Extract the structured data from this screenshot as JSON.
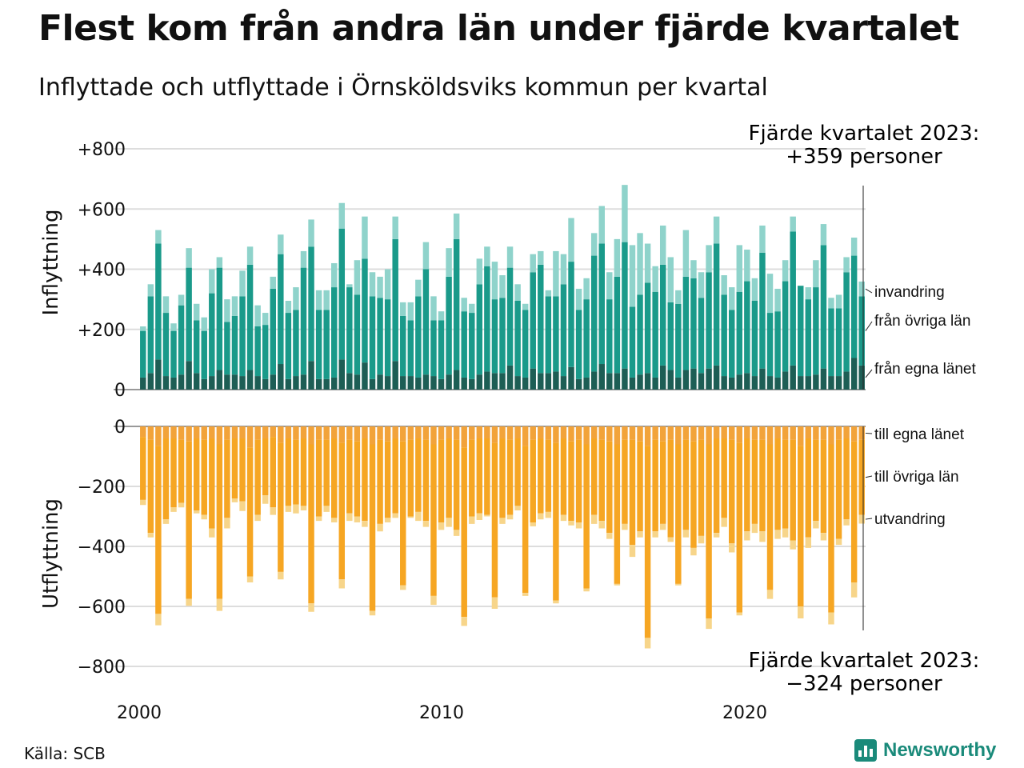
{
  "title": "Flest kom från andra län under fjärde kvartalet",
  "subtitle": "Inflyttade och utflyttade i Örnsköldsviks kommun per kvartal",
  "source": "Källa: SCB",
  "brand": "Newsworthy",
  "colors": {
    "in_egna": "#1d5e55",
    "in_ovriga": "#1a9a8a",
    "in_invandring": "#8fd3cb",
    "out_egna": "#f2a33a",
    "out_ovriga": "#f6a623",
    "out_utvandring": "#f7d58a",
    "brand": "#1a8a7a"
  },
  "chart_data": {
    "type": "bar",
    "stacked": true,
    "annotations": {
      "top_label": "Fjärde kvartalet 2023:",
      "top_value": "+359 personer",
      "bottom_label": "Fjärde kvartalet 2023:",
      "bottom_value": "−324 personer"
    },
    "x_ticks": [
      "2000",
      "2010",
      "2020"
    ],
    "panels": [
      {
        "name": "inflyttning",
        "ylabel": "Inflyttning",
        "ylim": [
          0,
          800
        ],
        "y_ticks": [
          "0",
          "+200",
          "+400",
          "+600",
          "+800"
        ],
        "series_labels": [
          "invandring",
          "från övriga län",
          "från egna länet"
        ],
        "totals": [
          210,
          350,
          530,
          310,
          220,
          315,
          470,
          285,
          240,
          400,
          440,
          300,
          310,
          395,
          475,
          280,
          255,
          375,
          515,
          295,
          340,
          450,
          565,
          330,
          330,
          420,
          620,
          350,
          430,
          575,
          390,
          375,
          400,
          575,
          290,
          290,
          365,
          490,
          310,
          260,
          470,
          585,
          305,
          285,
          435,
          475,
          425,
          380,
          475,
          350,
          285,
          450,
          460,
          330,
          460,
          450,
          570,
          335,
          370,
          520,
          610,
          390,
          500,
          680,
          480,
          520,
          485,
          410,
          545,
          440,
          330,
          530,
          430,
          390,
          480,
          575,
          380,
          340,
          480,
          465,
          370,
          545,
          385,
          335,
          430,
          575,
          345,
          340,
          430,
          550,
          305,
          315,
          440,
          505,
          359
        ],
        "egna": [
          40,
          55,
          100,
          45,
          40,
          50,
          95,
          55,
          35,
          45,
          65,
          50,
          50,
          45,
          65,
          45,
          35,
          50,
          85,
          35,
          45,
          50,
          95,
          35,
          35,
          40,
          100,
          55,
          50,
          90,
          35,
          50,
          45,
          95,
          45,
          45,
          40,
          50,
          45,
          35,
          50,
          65,
          40,
          35,
          50,
          60,
          55,
          55,
          80,
          45,
          40,
          70,
          55,
          55,
          60,
          45,
          75,
          35,
          40,
          60,
          85,
          55,
          55,
          70,
          40,
          50,
          55,
          40,
          80,
          65,
          40,
          65,
          70,
          55,
          70,
          80,
          45,
          40,
          50,
          55,
          45,
          70,
          45,
          40,
          60,
          80,
          45,
          45,
          50,
          70,
          45,
          45,
          60,
          105,
          80
        ],
        "ovriga": [
          155,
          255,
          385,
          210,
          155,
          230,
          310,
          175,
          160,
          275,
          340,
          175,
          195,
          265,
          350,
          165,
          180,
          285,
          365,
          220,
          220,
          355,
          380,
          230,
          230,
          300,
          435,
          285,
          265,
          345,
          275,
          255,
          255,
          405,
          200,
          185,
          270,
          350,
          185,
          195,
          325,
          435,
          220,
          220,
          300,
          350,
          245,
          250,
          325,
          250,
          225,
          320,
          360,
          255,
          250,
          305,
          350,
          230,
          260,
          385,
          400,
          245,
          320,
          420,
          235,
          265,
          300,
          285,
          335,
          225,
          245,
          310,
          300,
          250,
          320,
          405,
          270,
          225,
          275,
          305,
          250,
          385,
          210,
          220,
          300,
          445,
          300,
          255,
          290,
          410,
          225,
          225,
          330,
          340,
          230
        ],
        "invandring": [
          15,
          40,
          45,
          55,
          25,
          35,
          65,
          55,
          45,
          80,
          35,
          75,
          65,
          85,
          60,
          70,
          40,
          40,
          65,
          40,
          75,
          55,
          90,
          65,
          65,
          80,
          85,
          10,
          115,
          140,
          80,
          70,
          100,
          75,
          45,
          60,
          55,
          90,
          80,
          30,
          95,
          85,
          45,
          30,
          85,
          65,
          125,
          75,
          70,
          55,
          20,
          60,
          45,
          20,
          150,
          100,
          145,
          70,
          70,
          75,
          125,
          90,
          125,
          190,
          205,
          205,
          130,
          85,
          130,
          150,
          45,
          155,
          60,
          85,
          90,
          90,
          65,
          75,
          155,
          105,
          75,
          90,
          130,
          75,
          70,
          50,
          0,
          40,
          90,
          70,
          35,
          45,
          50,
          60,
          49
        ]
      },
      {
        "name": "utflyttning",
        "ylabel": "Utflyttning",
        "ylim": [
          -800,
          0
        ],
        "y_ticks": [
          "0",
          "−200",
          "−400",
          "−600",
          "−800"
        ],
        "series_labels": [
          "till egna länet",
          "till övriga län",
          "utvandring"
        ],
        "totals": [
          -262,
          -370,
          -663,
          -325,
          -285,
          -270,
          -598,
          -290,
          -310,
          -370,
          -615,
          -340,
          -253,
          -282,
          -520,
          -315,
          -258,
          -295,
          -510,
          -285,
          -290,
          -280,
          -618,
          -315,
          -285,
          -320,
          -540,
          -315,
          -320,
          -335,
          -630,
          -350,
          -320,
          -305,
          -545,
          -305,
          -315,
          -335,
          -595,
          -345,
          -335,
          -365,
          -665,
          -325,
          -312,
          -300,
          -608,
          -325,
          -310,
          -280,
          -565,
          -333,
          -310,
          -305,
          -590,
          -315,
          -330,
          -340,
          -550,
          -325,
          -340,
          -375,
          -530,
          -345,
          -435,
          -370,
          -740,
          -370,
          -345,
          -385,
          -530,
          -370,
          -430,
          -390,
          -675,
          -370,
          -335,
          -420,
          -630,
          -380,
          -355,
          -385,
          -575,
          -375,
          -370,
          -410,
          -640,
          -405,
          -340,
          -380,
          -660,
          -395,
          -330,
          -570,
          -324
        ],
        "egna": [
          -35,
          -45,
          -65,
          -40,
          -40,
          -45,
          -50,
          -40,
          -45,
          -40,
          -60,
          -45,
          -40,
          -40,
          -70,
          -45,
          -40,
          -35,
          -55,
          -40,
          -45,
          -40,
          -60,
          -45,
          -45,
          -40,
          -55,
          -45,
          -50,
          -40,
          -60,
          -45,
          -50,
          -40,
          -50,
          -45,
          -40,
          -45,
          -60,
          -45,
          -40,
          -45,
          -70,
          -45,
          -40,
          -40,
          -55,
          -40,
          -45,
          -40,
          -65,
          -45,
          -40,
          -45,
          -55,
          -40,
          -50,
          -45,
          -60,
          -40,
          -45,
          -50,
          -60,
          -45,
          -45,
          -50,
          -65,
          -45,
          -50,
          -45,
          -60,
          -45,
          -50,
          -45,
          -60,
          -40,
          -40,
          -45,
          -55,
          -40,
          -45,
          -45,
          -60,
          -40,
          -45,
          -45,
          -65,
          -40,
          -45,
          -45,
          -60,
          -45,
          -40,
          -50,
          -45
        ],
        "ovriga": [
          -210,
          -310,
          -560,
          -270,
          -230,
          -210,
          -525,
          -240,
          -250,
          -300,
          -515,
          -260,
          -200,
          -210,
          -430,
          -250,
          -190,
          -235,
          -430,
          -225,
          -215,
          -225,
          -530,
          -255,
          -220,
          -265,
          -455,
          -245,
          -250,
          -275,
          -555,
          -280,
          -255,
          -250,
          -480,
          -255,
          -245,
          -270,
          -505,
          -275,
          -265,
          -300,
          -565,
          -255,
          -250,
          -255,
          -515,
          -265,
          -250,
          -225,
          -490,
          -275,
          -250,
          -240,
          -525,
          -255,
          -265,
          -275,
          -480,
          -255,
          -270,
          -305,
          -465,
          -280,
          -350,
          -300,
          -640,
          -305,
          -275,
          -325,
          -465,
          -300,
          -355,
          -320,
          -580,
          -315,
          -265,
          -345,
          -565,
          -310,
          -280,
          -305,
          -485,
          -305,
          -295,
          -335,
          -535,
          -330,
          -270,
          -310,
          -560,
          -330,
          -270,
          -470,
          -250
        ],
        "utvandring": [
          -17,
          -15,
          -38,
          -15,
          -15,
          -15,
          -23,
          -10,
          -15,
          -30,
          -40,
          -35,
          -13,
          -32,
          -20,
          -20,
          -28,
          -25,
          -25,
          -20,
          -30,
          -15,
          -28,
          -15,
          -20,
          -15,
          -30,
          -25,
          -20,
          -20,
          -15,
          -25,
          -15,
          -15,
          -15,
          -5,
          -30,
          -20,
          -30,
          -25,
          -30,
          -20,
          -30,
          -25,
          -22,
          -5,
          -38,
          -20,
          -15,
          -15,
          -10,
          -13,
          -20,
          -20,
          -10,
          -20,
          -15,
          -20,
          -10,
          -30,
          -25,
          -20,
          -5,
          -20,
          -40,
          -20,
          -35,
          -20,
          -20,
          -15,
          -5,
          -25,
          -25,
          -25,
          -35,
          -15,
          -30,
          -30,
          -10,
          -30,
          -30,
          -35,
          -30,
          -30,
          -30,
          -30,
          -40,
          -35,
          -25,
          -25,
          -40,
          -20,
          -20,
          -50,
          -29
        ]
      }
    ]
  }
}
